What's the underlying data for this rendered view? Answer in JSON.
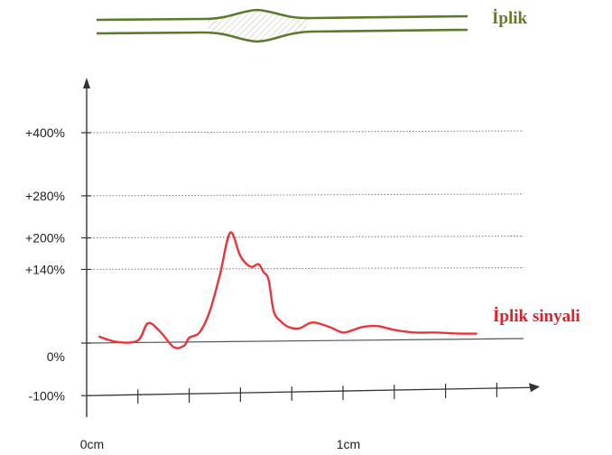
{
  "chart_data": {
    "type": "line",
    "title": "",
    "xlabel": "",
    "ylabel": "",
    "x_ticks": [
      {
        "value": 0,
        "label": "0cm"
      },
      {
        "value": 1,
        "label": "1cm"
      }
    ],
    "y_ticks": [
      {
        "value": 400,
        "label": "+400%"
      },
      {
        "value": 280,
        "label": "+280%"
      },
      {
        "value": 200,
        "label": "+200%"
      },
      {
        "value": 140,
        "label": "+140%"
      },
      {
        "value": 0,
        "label": "0%"
      },
      {
        "value": -100,
        "label": "-100%"
      }
    ],
    "grid_lines_at": [
      400,
      280,
      200,
      140
    ],
    "xlim": [
      0,
      1.7
    ],
    "ylim": [
      -100,
      500
    ],
    "yarn_label": "İplik",
    "yarn_color": "#5a7a2e",
    "series": [
      {
        "name": "İplik sinyali",
        "color": "#e8343b",
        "x": [
          0.05,
          0.12,
          0.2,
          0.24,
          0.29,
          0.34,
          0.38,
          0.4,
          0.44,
          0.48,
          0.52,
          0.56,
          0.6,
          0.64,
          0.67,
          0.69,
          0.71,
          0.73,
          0.76,
          0.79,
          0.83,
          0.87,
          0.9,
          0.95,
          1.0,
          1.04,
          1.07,
          1.1,
          1.14,
          1.2,
          1.28,
          1.36,
          1.45,
          1.52
        ],
        "y": [
          12,
          2,
          5,
          38,
          20,
          -8,
          -5,
          10,
          20,
          60,
          130,
          210,
          165,
          145,
          150,
          135,
          120,
          60,
          40,
          30,
          28,
          38,
          38,
          30,
          20,
          25,
          30,
          32,
          32,
          25,
          20,
          20,
          18,
          18
        ]
      }
    ]
  }
}
